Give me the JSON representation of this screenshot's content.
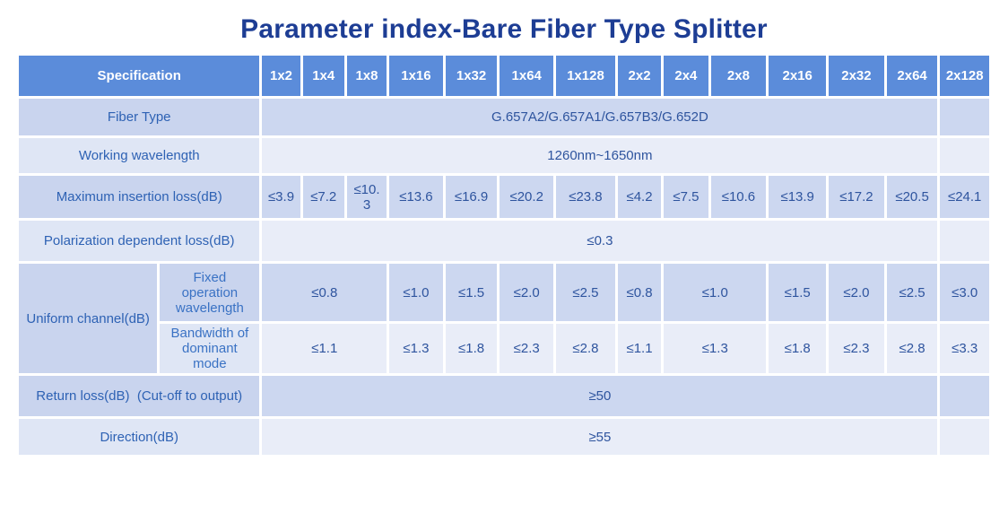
{
  "title": "Parameter index-Bare Fiber Type Splitter",
  "colors": {
    "title_text": "#1d3d94",
    "header_bg": "#5b8cda",
    "header_text": "#ffffff",
    "row_dark_bg": "#ccd7f0",
    "row_light_bg": "#e9edf8",
    "value_text": "#2e549e",
    "label_text": "#2e62b4"
  },
  "chart_data": {
    "type": "table",
    "title": "Parameter index-Bare Fiber Type Splitter",
    "columns": [
      "Specification",
      "1x2",
      "1x4",
      "1x8",
      "1x16",
      "1x32",
      "1x64",
      "1x128",
      "2x2",
      "2x4",
      "2x8",
      "2x16",
      "2x32",
      "2x64",
      "2x128"
    ],
    "rows": [
      [
        "Fiber Type",
        "G.657A2/G.657A1/G.657B3/G.652D"
      ],
      [
        "Working wavelength",
        "1260nm~1650nm"
      ],
      [
        "Maximum insertion loss(dB)",
        "≤3.9",
        "≤7.2",
        "≤10.3",
        "≤13.6",
        "≤16.9",
        "≤20.2",
        "≤23.8",
        "≤4.2",
        "≤7.5",
        "≤10.6",
        "≤13.9",
        "≤17.2",
        "≤20.5",
        "≤24.1"
      ],
      [
        "Polarization dependent loss(dB)",
        "≤0.3"
      ],
      [
        "Uniform channel(dB) - Fixed operation wavelength",
        "≤0.8",
        "≤0.8",
        "≤0.8",
        "≤1.0",
        "≤1.5",
        "≤2.0",
        "≤2.5",
        "≤0.8",
        "≤1.0",
        "≤1.0",
        "≤1.5",
        "≤2.0",
        "≤2.5",
        "≤3.0"
      ],
      [
        "Uniform channel(dB) - Bandwidth of dominant mode",
        "≤1.1",
        "≤1.1",
        "≤1.1",
        "≤1.3",
        "≤1.8",
        "≤2.3",
        "≤2.8",
        "≤1.1",
        "≤1.3",
        "≤1.3",
        "≤1.8",
        "≤2.3",
        "≤2.8",
        "≤3.3"
      ],
      [
        "Return loss(dB)  (Cut-off to output)",
        "≥50"
      ],
      [
        "Direction(dB)",
        "≥55"
      ]
    ]
  },
  "table": {
    "header": [
      {
        "text": "Specification",
        "span": 2
      },
      {
        "text": "1x2"
      },
      {
        "text": "1x4"
      },
      {
        "text": "1x8"
      },
      {
        "text": "1x16"
      },
      {
        "text": "1x32"
      },
      {
        "text": "1x64"
      },
      {
        "text": "1x128"
      },
      {
        "text": "2x2"
      },
      {
        "text": "2x4"
      },
      {
        "text": "2x8"
      },
      {
        "text": "2x16"
      },
      {
        "text": "2x32"
      },
      {
        "text": "2x64"
      },
      {
        "text": "2x128"
      }
    ],
    "rows": [
      {
        "shade": "dark",
        "label": {
          "text": "Fiber Type",
          "colspan": 2
        },
        "cells": [
          {
            "text": "G.657A2/G.657A1/G.657B3/G.652D",
            "span": 13
          },
          {
            "text": ""
          }
        ]
      },
      {
        "shade": "light",
        "label": {
          "text": "Working wavelength",
          "colspan": 2
        },
        "cells": [
          {
            "text": "1260nm~1650nm",
            "span": 13
          },
          {
            "text": ""
          }
        ]
      },
      {
        "shade": "dark",
        "label": {
          "text": "Maximum insertion loss(dB)",
          "colspan": 2
        },
        "cells": [
          {
            "text": "≤3.9"
          },
          {
            "text": "≤7.2"
          },
          {
            "text": "≤10.3"
          },
          {
            "text": "≤13.6"
          },
          {
            "text": "≤16.9"
          },
          {
            "text": "≤20.2"
          },
          {
            "text": "≤23.8"
          },
          {
            "text": "≤4.2"
          },
          {
            "text": "≤7.5"
          },
          {
            "text": "≤10.6"
          },
          {
            "text": "≤13.9"
          },
          {
            "text": "≤17.2"
          },
          {
            "text": "≤20.5"
          },
          {
            "text": "≤24.1"
          }
        ]
      },
      {
        "shade": "light",
        "label": {
          "text": "Polarization dependent loss(dB)",
          "colspan": 2
        },
        "cells": [
          {
            "text": "≤0.3",
            "span": 13
          },
          {
            "text": ""
          }
        ]
      },
      {
        "shade": "dark",
        "label": {
          "text": "Uniform channel(dB)",
          "rowspan": 2
        },
        "sublabel": {
          "text": "Fixed operation wavelength"
        },
        "cells": [
          {
            "text": "≤0.8",
            "span": 3
          },
          {
            "text": "≤1.0"
          },
          {
            "text": "≤1.5"
          },
          {
            "text": "≤2.0"
          },
          {
            "text": "≤2.5"
          },
          {
            "text": "≤0.8"
          },
          {
            "text": "≤1.0",
            "span": 2
          },
          {
            "text": "≤1.5"
          },
          {
            "text": "≤2.0"
          },
          {
            "text": "≤2.5"
          },
          {
            "text": "≤3.0"
          }
        ]
      },
      {
        "shade": "light",
        "sublabel": {
          "text": "Bandwidth of dominant mode"
        },
        "cells": [
          {
            "text": "≤1.1",
            "span": 3
          },
          {
            "text": "≤1.3"
          },
          {
            "text": "≤1.8"
          },
          {
            "text": "≤2.3"
          },
          {
            "text": "≤2.8"
          },
          {
            "text": "≤1.1"
          },
          {
            "text": "≤1.3",
            "span": 2
          },
          {
            "text": "≤1.8"
          },
          {
            "text": "≤2.3"
          },
          {
            "text": "≤2.8"
          },
          {
            "text": "≤3.3"
          }
        ]
      },
      {
        "shade": "dark",
        "label": {
          "text": "Return loss(dB)  (Cut-off to output)",
          "colspan": 2
        },
        "cells": [
          {
            "text": "≥50",
            "span": 13
          },
          {
            "text": ""
          }
        ]
      },
      {
        "shade": "light",
        "label": {
          "text": "Direction(dB)",
          "colspan": 2
        },
        "cells": [
          {
            "text": "≥55",
            "span": 13
          },
          {
            "text": ""
          }
        ]
      }
    ]
  }
}
